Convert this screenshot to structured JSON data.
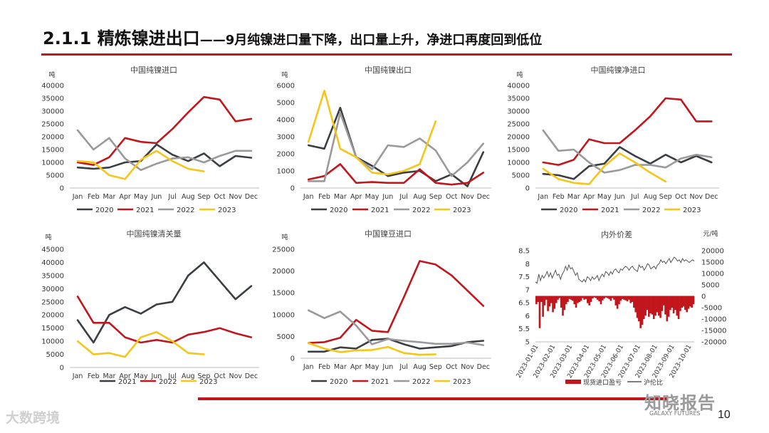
{
  "page": {
    "title_main": "2.1.1 精炼镍进出口",
    "title_sub": "——9月纯镍进口量下降，出口量上升，净进口再度回到低位",
    "page_number": "10",
    "watermark_left": "大数跨境",
    "watermark_right": "知晓报告",
    "watermark_right_en": "GALAXY FUTURES"
  },
  "colors": {
    "c2020": "#3a3e42",
    "c2021": "#c0161c",
    "c2022": "#9a9a9a",
    "c2023": "#f5c518",
    "accent": "#c0161c"
  },
  "months": [
    "Jan",
    "Feb",
    "Mar",
    "Apr",
    "May",
    "Jun",
    "Jul",
    "Aug",
    "Sep",
    "Oct",
    "Nov",
    "Dec"
  ],
  "chart_data": [
    {
      "id": "import",
      "type": "line",
      "title": "中国纯镍进口",
      "unit": "吨",
      "ylim": [
        0,
        40000
      ],
      "yticks": [
        0,
        5000,
        10000,
        15000,
        20000,
        25000,
        30000,
        35000,
        40000
      ],
      "series": [
        {
          "name": "2020",
          "color": "#3a3e42",
          "values": [
            8000,
            7500,
            8000,
            10000,
            10500,
            17000,
            13000,
            10500,
            13500,
            8500,
            12500,
            11800
          ]
        },
        {
          "name": "2021",
          "color": "#c0161c",
          "values": [
            10000,
            9000,
            12000,
            19500,
            18000,
            17500,
            23000,
            29500,
            35500,
            34500,
            26000,
            27000
          ]
        },
        {
          "name": "2022",
          "color": "#9a9a9a",
          "values": [
            22500,
            15000,
            19500,
            11500,
            7000,
            9500,
            11500,
            12000,
            10000,
            12500,
            14500,
            14500
          ]
        },
        {
          "name": "2023",
          "color": "#f5c518",
          "values": [
            10500,
            10000,
            5000,
            3500,
            11000,
            14500,
            10500,
            7500,
            6500
          ]
        }
      ]
    },
    {
      "id": "export",
      "type": "line",
      "title": "中国纯镍出口",
      "unit": "吨",
      "ylim": [
        0,
        6000
      ],
      "yticks": [
        0,
        1000,
        2000,
        3000,
        4000,
        5000,
        6000
      ],
      "series": [
        {
          "name": "2020",
          "color": "#3a3e42",
          "values": [
            2500,
            2300,
            4700,
            1800,
            1300,
            700,
            900,
            1000,
            400,
            800,
            100,
            2100
          ]
        },
        {
          "name": "2021",
          "color": "#c0161c",
          "values": [
            500,
            700,
            1400,
            300,
            350,
            300,
            300,
            1100,
            300,
            200,
            300,
            900
          ]
        },
        {
          "name": "2022",
          "color": "#9a9a9a",
          "values": [
            400,
            400,
            4400,
            1800,
            1100,
            2500,
            2400,
            2900,
            2200,
            700,
            1500,
            2600
          ]
        },
        {
          "name": "2023",
          "color": "#f5c518",
          "values": [
            2700,
            5700,
            2300,
            1800,
            900,
            800,
            1000,
            1400,
            3900
          ]
        }
      ]
    },
    {
      "id": "net",
      "type": "line",
      "title": "中国纯镍净进口",
      "unit": "吨",
      "ylim": [
        0,
        40000
      ],
      "yticks": [
        0,
        5000,
        10000,
        15000,
        20000,
        25000,
        30000,
        35000,
        40000
      ],
      "series": [
        {
          "name": "2020",
          "color": "#3a3e42",
          "values": [
            5500,
            5000,
            3500,
            8500,
            9500,
            16000,
            12500,
            9500,
            13000,
            10000,
            12500,
            10000
          ]
        },
        {
          "name": "2021",
          "color": "#c0161c",
          "values": [
            10000,
            9000,
            11000,
            19000,
            17500,
            17500,
            22500,
            28000,
            35000,
            34500,
            26000,
            26000
          ]
        },
        {
          "name": "2022",
          "color": "#9a9a9a",
          "values": [
            22500,
            14500,
            15000,
            10000,
            6000,
            7000,
            9000,
            9000,
            8000,
            11500,
            13000,
            12000
          ]
        },
        {
          "name": "2023",
          "color": "#f5c518",
          "values": [
            7500,
            3500,
            2000,
            1500,
            8500,
            13500,
            10000,
            6000,
            2500
          ]
        }
      ]
    },
    {
      "id": "customs",
      "type": "line",
      "title": "中国纯镍清关量",
      "unit": "吨",
      "ylim": [
        0,
        45000
      ],
      "yticks": [
        0,
        5000,
        10000,
        15000,
        20000,
        25000,
        30000,
        35000,
        40000,
        45000
      ],
      "series": [
        {
          "name": "2021",
          "color": "#3a3e42",
          "values": [
            18000,
            9500,
            20000,
            23000,
            20500,
            24000,
            25000,
            35000,
            40000,
            33000,
            26000,
            31000
          ]
        },
        {
          "name": "2022",
          "color": "#c0161c",
          "values": [
            27000,
            17000,
            17000,
            11500,
            9500,
            10500,
            9500,
            12500,
            13500,
            15000,
            13000,
            11500
          ]
        },
        {
          "name": "2023",
          "color": "#f5c518",
          "values": [
            10000,
            5000,
            5500,
            4000,
            11500,
            13500,
            10000,
            5500,
            5000
          ]
        }
      ]
    },
    {
      "id": "beans",
      "type": "line",
      "title": "中国镍豆进口",
      "unit": "吨",
      "ylim": [
        0,
        25000
      ],
      "yticks": [
        0,
        5000,
        10000,
        15000,
        20000,
        25000
      ],
      "series": [
        {
          "name": "2020",
          "color": "#3a3e42",
          "values": [
            1500,
            1500,
            2500,
            2200,
            4200,
            4500,
            3200,
            2200,
            2500,
            2800,
            3700,
            4000
          ]
        },
        {
          "name": "2021",
          "color": "#c0161c",
          "values": [
            3500,
            3700,
            4700,
            8800,
            6300,
            6000,
            14000,
            22300,
            21500,
            19000,
            15500,
            12000
          ]
        },
        {
          "name": "2022",
          "color": "#9a9a9a",
          "values": [
            11000,
            9200,
            10700,
            7500,
            3200,
            4400,
            4000,
            3700,
            3300,
            3300,
            3600,
            3000
          ]
        },
        {
          "name": "2023",
          "color": "#f5c518",
          "values": [
            3500,
            2200,
            1400,
            1800,
            1900,
            2600,
            1200,
            800,
            900
          ]
        }
      ]
    },
    {
      "id": "spread",
      "type": "bar+line",
      "title": "内外价差",
      "y2_unit": "元/吨",
      "ylim_left": [
        5,
        8.5
      ],
      "yticks_left": [
        5,
        5.5,
        6,
        6.5,
        7,
        7.5,
        8,
        8.5
      ],
      "ylim_right": [
        -20000,
        20000
      ],
      "yticks_right": [
        -20000,
        -15000,
        -10000,
        -5000,
        0,
        5000,
        10000,
        15000,
        20000
      ],
      "x_labels": [
        "2023-01-01",
        "2023-02-01",
        "2023-03-01",
        "2023-04-01",
        "2023-05-01",
        "2023-06-01",
        "2023-07-01",
        "2023-08-01",
        "2023-09-01",
        "2023-10-01"
      ],
      "legend": [
        "现货进口盈亏",
        "沪伦比"
      ],
      "bar_values": [
        -3500,
        -2500,
        -14000,
        -2500,
        -9000,
        -4000,
        -1500,
        -6500,
        -4500,
        -3000,
        -7000,
        -5500,
        -3000,
        -1500,
        -800,
        -5000,
        -8500,
        -6000,
        -3500,
        -2500,
        -1200,
        -1500,
        -2000,
        -3500,
        -5000,
        -3000,
        -2500,
        -2000,
        -800,
        -1500,
        -1200,
        -3000,
        -4000,
        -2500,
        -1000,
        -500,
        -800,
        -1500,
        -2200,
        -3500,
        -1800,
        -1000,
        -500,
        -800,
        -1200,
        -2000,
        -800,
        -1500,
        -4000,
        -5500,
        -3500,
        -2000,
        -1200,
        -1500,
        -1800,
        -2200,
        -1500,
        -3000,
        -2500,
        -5000,
        -7000,
        -9500,
        -11000,
        -14000,
        -12500,
        -10000,
        -8500,
        -6000,
        -9000,
        -7500,
        -8000,
        -10000,
        -8500,
        -7000,
        -8500,
        -9500,
        -6500,
        -4000,
        -8000,
        -11000,
        -9000,
        -6000,
        -5000,
        -7500,
        -6000,
        -8500,
        -10000,
        -6500,
        -5000,
        -4500,
        -6000,
        -7000,
        -5500,
        -4500,
        -5000,
        -3500
      ],
      "line_values": [
        7.3,
        7.25,
        7.6,
        7.35,
        7.55,
        7.45,
        7.55,
        7.7,
        7.5,
        7.65,
        7.45,
        7.6,
        7.75,
        7.55,
        7.6,
        7.4,
        7.6,
        7.7,
        7.9,
        7.75,
        7.95,
        7.8,
        7.85,
        7.7,
        7.55,
        7.65,
        7.4,
        7.35,
        7.3,
        7.4,
        7.3,
        7.5,
        7.45,
        7.35,
        7.5,
        7.4,
        7.45,
        7.55,
        7.35,
        7.5,
        7.6,
        7.5,
        7.7,
        7.65,
        7.55,
        7.7,
        7.6,
        7.75,
        7.8,
        7.7,
        7.65,
        7.8,
        7.75,
        7.85,
        7.9,
        7.85,
        7.75,
        7.85,
        7.9,
        7.8,
        7.75,
        7.7,
        7.95,
        7.85,
        7.9,
        7.75,
        7.85,
        8.0,
        7.95,
        7.8,
        7.85,
        7.9,
        7.8,
        7.95,
        8.0,
        8.15,
        8.05,
        8.1,
        8.0,
        8.1,
        8.2,
        8.05,
        8.15,
        8.25,
        8.2,
        8.1,
        8.15,
        8.05,
        8.2,
        8.1,
        8.15,
        8.1,
        8.05,
        8.1,
        8.15,
        8.1
      ]
    }
  ]
}
